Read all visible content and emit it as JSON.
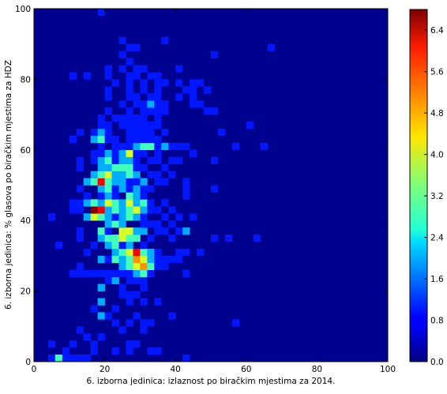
{
  "chart_data": {
    "type": "heatmap",
    "title": "",
    "xlabel": "6. izborna jedinica: izlaznost po biračkim mjestima za 2014.",
    "ylabel": "6. izborna jedinica: % glasova po biračkim mjestima za HDZ",
    "xlim": [
      0,
      100
    ],
    "ylim": [
      0,
      100
    ],
    "bins": 50,
    "bin_width": 2,
    "xticks": [
      "0",
      "20",
      "40",
      "60",
      "80",
      "100"
    ],
    "yticks": [
      "0",
      "20",
      "40",
      "60",
      "80",
      "100"
    ],
    "colorbar": {
      "colormap": "jet",
      "min": 0,
      "max": 6.8,
      "ticks": [
        "0.0",
        "0.8",
        "1.6",
        "2.4",
        "3.2",
        "4.0",
        "4.8",
        "5.6",
        "6.4"
      ]
    },
    "background_color": "#00008f",
    "cells": [
      [
        4,
        0,
        1
      ],
      [
        6,
        0,
        3
      ],
      [
        8,
        0,
        1
      ],
      [
        10,
        0,
        1
      ],
      [
        12,
        0,
        1
      ],
      [
        14,
        0,
        1
      ],
      [
        42,
        0,
        1
      ],
      [
        8,
        2,
        1
      ],
      [
        16,
        2,
        1
      ],
      [
        22,
        2,
        1
      ],
      [
        26,
        2,
        1
      ],
      [
        32,
        2,
        1
      ],
      [
        34,
        2,
        1
      ],
      [
        4,
        4,
        1
      ],
      [
        10,
        4,
        1
      ],
      [
        16,
        4,
        1
      ],
      [
        26,
        4,
        1
      ],
      [
        28,
        4,
        1
      ],
      [
        14,
        6,
        1
      ],
      [
        18,
        6,
        1
      ],
      [
        12,
        8,
        1
      ],
      [
        24,
        8,
        1
      ],
      [
        30,
        8,
        1
      ],
      [
        22,
        10,
        1
      ],
      [
        26,
        10,
        1
      ],
      [
        30,
        10,
        1
      ],
      [
        32,
        10,
        1
      ],
      [
        56,
        10,
        1
      ],
      [
        18,
        12,
        2
      ],
      [
        20,
        12,
        1
      ],
      [
        28,
        12,
        1
      ],
      [
        38,
        12,
        1
      ],
      [
        16,
        14,
        1
      ],
      [
        22,
        14,
        1
      ],
      [
        18,
        16,
        2
      ],
      [
        26,
        16,
        1
      ],
      [
        30,
        16,
        1
      ],
      [
        34,
        16,
        1
      ],
      [
        24,
        18,
        1
      ],
      [
        26,
        18,
        1
      ],
      [
        28,
        18,
        1
      ],
      [
        18,
        20,
        2
      ],
      [
        24,
        20,
        1
      ],
      [
        30,
        20,
        1
      ],
      [
        20,
        22,
        1
      ],
      [
        22,
        22,
        2
      ],
      [
        26,
        22,
        1
      ],
      [
        28,
        22,
        1
      ],
      [
        30,
        22,
        1
      ],
      [
        10,
        24,
        1
      ],
      [
        12,
        24,
        1
      ],
      [
        14,
        24,
        1
      ],
      [
        16,
        24,
        1
      ],
      [
        18,
        24,
        1
      ],
      [
        20,
        24,
        1
      ],
      [
        22,
        24,
        1
      ],
      [
        24,
        24,
        1
      ],
      [
        26,
        24,
        1
      ],
      [
        28,
        24,
        2
      ],
      [
        30,
        24,
        3
      ],
      [
        32,
        24,
        1
      ],
      [
        42,
        24,
        1
      ],
      [
        12,
        26,
        1
      ],
      [
        24,
        26,
        2
      ],
      [
        26,
        26,
        3
      ],
      [
        28,
        26,
        4
      ],
      [
        30,
        26,
        5
      ],
      [
        32,
        26,
        3
      ],
      [
        34,
        26,
        1
      ],
      [
        36,
        26,
        1
      ],
      [
        18,
        28,
        2
      ],
      [
        20,
        28,
        1
      ],
      [
        22,
        28,
        3
      ],
      [
        24,
        28,
        2
      ],
      [
        26,
        28,
        3
      ],
      [
        28,
        28,
        5
      ],
      [
        30,
        28,
        4
      ],
      [
        32,
        28,
        2
      ],
      [
        34,
        28,
        1
      ],
      [
        36,
        28,
        1
      ],
      [
        38,
        28,
        1
      ],
      [
        40,
        28,
        1
      ],
      [
        14,
        30,
        1
      ],
      [
        22,
        30,
        2
      ],
      [
        24,
        30,
        3
      ],
      [
        26,
        30,
        4
      ],
      [
        28,
        30,
        6
      ],
      [
        30,
        30,
        3
      ],
      [
        32,
        30,
        2
      ],
      [
        34,
        30,
        1
      ],
      [
        40,
        30,
        1
      ],
      [
        42,
        30,
        1
      ],
      [
        46,
        30,
        1
      ],
      [
        6,
        32,
        1
      ],
      [
        16,
        32,
        1
      ],
      [
        20,
        32,
        2
      ],
      [
        22,
        32,
        3
      ],
      [
        24,
        32,
        1
      ],
      [
        26,
        32,
        2
      ],
      [
        30,
        32,
        1
      ],
      [
        12,
        34,
        1
      ],
      [
        18,
        34,
        2
      ],
      [
        20,
        34,
        3
      ],
      [
        22,
        34,
        3
      ],
      [
        24,
        34,
        4
      ],
      [
        26,
        34,
        3
      ],
      [
        28,
        34,
        3
      ],
      [
        32,
        34,
        1
      ],
      [
        38,
        34,
        1
      ],
      [
        50,
        34,
        1
      ],
      [
        54,
        34,
        1
      ],
      [
        62,
        34,
        1
      ],
      [
        12,
        36,
        1
      ],
      [
        18,
        36,
        3
      ],
      [
        20,
        36,
        1
      ],
      [
        24,
        36,
        4
      ],
      [
        26,
        36,
        4
      ],
      [
        28,
        36,
        2
      ],
      [
        30,
        36,
        2
      ],
      [
        34,
        36,
        1
      ],
      [
        36,
        36,
        1
      ],
      [
        40,
        36,
        1
      ],
      [
        42,
        36,
        2
      ],
      [
        20,
        38,
        2
      ],
      [
        22,
        38,
        3
      ],
      [
        24,
        38,
        2
      ],
      [
        30,
        38,
        1
      ],
      [
        32,
        38,
        1
      ],
      [
        34,
        38,
        1
      ],
      [
        38,
        38,
        1
      ],
      [
        4,
        40,
        1
      ],
      [
        14,
        40,
        2
      ],
      [
        16,
        40,
        4
      ],
      [
        18,
        40,
        3
      ],
      [
        20,
        40,
        2
      ],
      [
        22,
        40,
        1
      ],
      [
        24,
        40,
        2
      ],
      [
        26,
        40,
        3
      ],
      [
        28,
        40,
        2
      ],
      [
        30,
        40,
        1
      ],
      [
        36,
        40,
        1
      ],
      [
        40,
        40,
        1
      ],
      [
        44,
        40,
        1
      ],
      [
        10,
        42,
        1
      ],
      [
        12,
        42,
        1
      ],
      [
        16,
        42,
        7
      ],
      [
        18,
        42,
        6
      ],
      [
        20,
        42,
        2
      ],
      [
        22,
        42,
        3
      ],
      [
        24,
        42,
        2
      ],
      [
        26,
        42,
        3
      ],
      [
        28,
        42,
        4
      ],
      [
        30,
        42,
        2
      ],
      [
        32,
        42,
        1
      ],
      [
        34,
        42,
        1
      ],
      [
        38,
        42,
        1
      ],
      [
        10,
        44,
        1
      ],
      [
        12,
        44,
        1
      ],
      [
        14,
        44,
        2
      ],
      [
        16,
        44,
        3
      ],
      [
        18,
        44,
        2
      ],
      [
        20,
        44,
        4
      ],
      [
        22,
        44,
        3
      ],
      [
        24,
        44,
        2
      ],
      [
        26,
        44,
        4
      ],
      [
        28,
        44,
        2
      ],
      [
        30,
        44,
        3
      ],
      [
        32,
        44,
        1
      ],
      [
        36,
        44,
        1
      ],
      [
        14,
        46,
        1
      ],
      [
        18,
        46,
        1
      ],
      [
        20,
        46,
        2
      ],
      [
        22,
        46,
        1
      ],
      [
        26,
        46,
        3
      ],
      [
        28,
        46,
        2
      ],
      [
        30,
        46,
        1
      ],
      [
        42,
        46,
        1
      ],
      [
        12,
        48,
        1
      ],
      [
        18,
        48,
        2
      ],
      [
        20,
        48,
        3
      ],
      [
        22,
        48,
        1
      ],
      [
        24,
        48,
        2
      ],
      [
        26,
        48,
        1
      ],
      [
        28,
        48,
        2
      ],
      [
        30,
        48,
        1
      ],
      [
        32,
        48,
        1
      ],
      [
        42,
        48,
        1
      ],
      [
        50,
        48,
        1
      ],
      [
        14,
        50,
        2
      ],
      [
        16,
        50,
        3
      ],
      [
        18,
        50,
        6
      ],
      [
        20,
        50,
        3
      ],
      [
        22,
        50,
        2
      ],
      [
        24,
        50,
        2
      ],
      [
        26,
        50,
        1
      ],
      [
        28,
        50,
        1
      ],
      [
        30,
        50,
        2
      ],
      [
        34,
        50,
        1
      ],
      [
        36,
        50,
        1
      ],
      [
        42,
        50,
        1
      ],
      [
        16,
        52,
        2
      ],
      [
        18,
        52,
        3
      ],
      [
        20,
        52,
        4
      ],
      [
        22,
        52,
        2
      ],
      [
        24,
        52,
        2
      ],
      [
        26,
        52,
        3
      ],
      [
        28,
        52,
        2
      ],
      [
        32,
        52,
        1
      ],
      [
        34,
        52,
        1
      ],
      [
        38,
        52,
        1
      ],
      [
        12,
        54,
        1
      ],
      [
        18,
        54,
        2
      ],
      [
        20,
        54,
        2
      ],
      [
        22,
        54,
        3
      ],
      [
        24,
        54,
        3
      ],
      [
        26,
        54,
        3
      ],
      [
        28,
        54,
        1
      ],
      [
        30,
        54,
        1
      ],
      [
        36,
        54,
        1
      ],
      [
        12,
        56,
        1
      ],
      [
        16,
        56,
        1
      ],
      [
        18,
        56,
        2
      ],
      [
        20,
        56,
        3
      ],
      [
        22,
        56,
        1
      ],
      [
        24,
        56,
        2
      ],
      [
        26,
        56,
        2
      ],
      [
        28,
        56,
        1
      ],
      [
        32,
        56,
        1
      ],
      [
        34,
        56,
        1
      ],
      [
        38,
        56,
        1
      ],
      [
        40,
        56,
        1
      ],
      [
        50,
        56,
        1
      ],
      [
        16,
        58,
        1
      ],
      [
        18,
        58,
        1
      ],
      [
        20,
        58,
        2
      ],
      [
        22,
        58,
        1
      ],
      [
        24,
        58,
        2
      ],
      [
        26,
        58,
        4
      ],
      [
        28,
        58,
        1
      ],
      [
        30,
        58,
        1
      ],
      [
        34,
        58,
        1
      ],
      [
        44,
        58,
        1
      ],
      [
        18,
        60,
        1
      ],
      [
        22,
        60,
        1
      ],
      [
        24,
        60,
        1
      ],
      [
        26,
        60,
        1
      ],
      [
        28,
        60,
        2
      ],
      [
        30,
        60,
        3
      ],
      [
        32,
        60,
        3
      ],
      [
        34,
        60,
        1
      ],
      [
        36,
        60,
        2
      ],
      [
        38,
        60,
        1
      ],
      [
        40,
        60,
        1
      ],
      [
        42,
        60,
        1
      ],
      [
        56,
        60,
        1
      ],
      [
        64,
        60,
        1
      ],
      [
        10,
        62,
        1
      ],
      [
        16,
        62,
        2
      ],
      [
        18,
        62,
        3
      ],
      [
        20,
        62,
        1
      ],
      [
        22,
        62,
        1
      ],
      [
        26,
        62,
        1
      ],
      [
        28,
        62,
        1
      ],
      [
        30,
        62,
        1
      ],
      [
        32,
        62,
        1
      ],
      [
        34,
        62,
        1
      ],
      [
        12,
        64,
        1
      ],
      [
        16,
        64,
        1
      ],
      [
        18,
        64,
        2
      ],
      [
        20,
        64,
        1
      ],
      [
        26,
        64,
        1
      ],
      [
        28,
        64,
        1
      ],
      [
        30,
        64,
        1
      ],
      [
        32,
        64,
        1
      ],
      [
        36,
        64,
        1
      ],
      [
        52,
        64,
        1
      ],
      [
        18,
        66,
        1
      ],
      [
        20,
        66,
        1
      ],
      [
        24,
        66,
        1
      ],
      [
        26,
        66,
        1
      ],
      [
        28,
        66,
        1
      ],
      [
        30,
        66,
        1
      ],
      [
        32,
        66,
        1
      ],
      [
        34,
        66,
        1
      ],
      [
        60,
        66,
        1
      ],
      [
        18,
        68,
        1
      ],
      [
        22,
        68,
        1
      ],
      [
        24,
        68,
        1
      ],
      [
        26,
        68,
        1
      ],
      [
        28,
        68,
        1
      ],
      [
        30,
        68,
        1
      ],
      [
        34,
        68,
        1
      ],
      [
        20,
        70,
        1
      ],
      [
        26,
        70,
        1
      ],
      [
        30,
        70,
        1
      ],
      [
        32,
        70,
        1
      ],
      [
        34,
        70,
        1
      ],
      [
        36,
        70,
        1
      ],
      [
        48,
        70,
        1
      ],
      [
        50,
        70,
        1
      ],
      [
        24,
        72,
        1
      ],
      [
        28,
        72,
        1
      ],
      [
        30,
        72,
        1
      ],
      [
        32,
        72,
        2
      ],
      [
        34,
        72,
        1
      ],
      [
        36,
        72,
        1
      ],
      [
        44,
        72,
        1
      ],
      [
        46,
        72,
        1
      ],
      [
        20,
        74,
        1
      ],
      [
        26,
        74,
        1
      ],
      [
        28,
        74,
        1
      ],
      [
        32,
        74,
        1
      ],
      [
        34,
        74,
        1
      ],
      [
        40,
        74,
        1
      ],
      [
        44,
        74,
        1
      ],
      [
        20,
        76,
        1
      ],
      [
        26,
        76,
        1
      ],
      [
        30,
        76,
        1
      ],
      [
        34,
        76,
        1
      ],
      [
        42,
        76,
        1
      ],
      [
        44,
        76,
        1
      ],
      [
        48,
        76,
        1
      ],
      [
        22,
        78,
        1
      ],
      [
        26,
        78,
        1
      ],
      [
        30,
        78,
        1
      ],
      [
        34,
        78,
        1
      ],
      [
        36,
        78,
        1
      ],
      [
        40,
        78,
        1
      ],
      [
        44,
        78,
        1
      ],
      [
        46,
        78,
        1
      ],
      [
        10,
        80,
        1
      ],
      [
        14,
        80,
        1
      ],
      [
        20,
        80,
        1
      ],
      [
        26,
        80,
        1
      ],
      [
        28,
        80,
        1
      ],
      [
        32,
        80,
        1
      ],
      [
        34,
        80,
        1
      ],
      [
        20,
        82,
        1
      ],
      [
        24,
        82,
        1
      ],
      [
        28,
        82,
        1
      ],
      [
        30,
        82,
        1
      ],
      [
        40,
        82,
        1
      ],
      [
        26,
        84,
        1
      ],
      [
        24,
        86,
        1
      ],
      [
        26,
        88,
        1
      ],
      [
        28,
        88,
        1
      ],
      [
        24,
        90,
        1
      ],
      [
        36,
        90,
        1
      ],
      [
        50,
        86,
        1
      ],
      [
        66,
        88,
        1
      ],
      [
        18,
        98,
        1
      ]
    ]
  }
}
